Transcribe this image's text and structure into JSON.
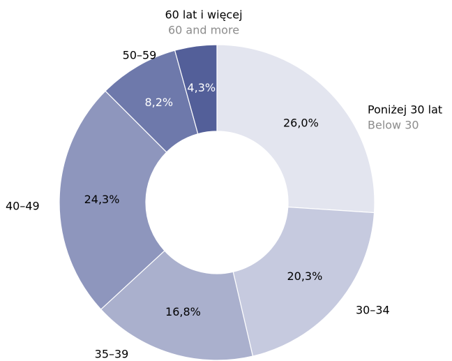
{
  "chart_data": {
    "type": "donut",
    "categories": [
      "Poniżej 30 lat",
      "30–34",
      "35–39",
      "40–49",
      "50–59",
      "60 lat i więcej"
    ],
    "secondary_labels": [
      "Below 30",
      null,
      null,
      null,
      null,
      "60 and more"
    ],
    "values": [
      26.0,
      20.3,
      16.8,
      24.3,
      8.2,
      4.3
    ],
    "value_labels": [
      "26,0%",
      "20,3%",
      "16,8%",
      "24,3%",
      "8,2%",
      "4,3%"
    ],
    "colors": [
      "#e3e5ef",
      "#c6cadf",
      "#aab0cd",
      "#8e96bd",
      "#6e79ab",
      "#535f99"
    ],
    "label_colors": [
      "#000000",
      "#000000",
      "#000000",
      "#000000",
      "#ffffff",
      "#ffffff"
    ]
  }
}
